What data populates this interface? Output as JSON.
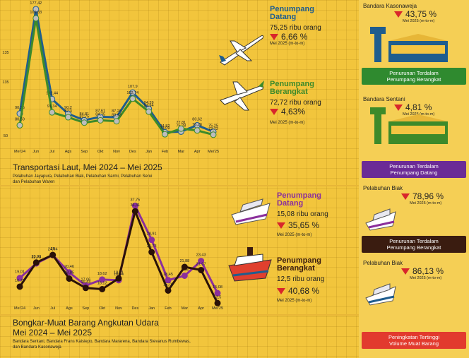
{
  "months": [
    "Mei'24",
    "Jun",
    "Jul",
    "Ags",
    "Sep",
    "Okt",
    "Nov",
    "Des",
    "Jan",
    "Feb",
    "Mar",
    "Apr",
    "Mei'25"
  ],
  "chart_data": [
    {
      "type": "line",
      "title": "",
      "series": [
        {
          "name": "Penumpang Datang",
          "color": "#1f5d8e",
          "values": [
            90.35,
            177.42,
            102.44,
            90.2,
            84.81,
            87.61,
            87.28,
            107.9,
            94.39,
            74.82,
            75.28,
            80.62,
            75.25
          ]
        },
        {
          "name": "Penumpang Berangkat",
          "color": "#3d8a2a",
          "values": [
            80.59,
            169.83,
            91.34,
            87.3,
            82.75,
            84.75,
            83.93,
            102.74,
            91.94,
            73.09,
            77.81,
            76.26,
            72.72
          ]
        }
      ],
      "y_ticks": [
        "135",
        "135",
        "50"
      ]
    },
    {
      "type": "line",
      "title": "",
      "series": [
        {
          "name": "Penumpang Datang",
          "color": "#8b2f9c",
          "values": [
            19.01,
            22.79,
            24.94,
            20.46,
            17.06,
            18.62,
            18.44,
            37.75,
            28.91,
            18.45,
            19.6,
            23.43,
            15.08
          ]
        },
        {
          "name": "Penumpang Berangkat",
          "color": "#2a1208",
          "values": [
            16.77,
            23.03,
            25,
            18.85,
            16.43,
            16.12,
            18.91,
            36.31,
            25.73,
            15.76,
            21.88,
            21.07,
            12.5
          ]
        }
      ],
      "y_ticks": [
        "50"
      ]
    }
  ],
  "air": {
    "datang_title": "Penumpang\nDatang",
    "datang_value": "75,25  ribu orang",
    "datang_pct": "6,66 %",
    "datang_note": "Mei 2025 (m-to-m)",
    "berangkat_title": "Penumpang\nBerangkat",
    "berangkat_value": "72,72 ribu orang",
    "berangkat_pct": "4,63%",
    "berangkat_note": "Mei 2025 (m-to-m)"
  },
  "sea": {
    "section_title": "Transportasi Laut, Mei 2024 – Mei 2025",
    "section_sub": "Pelabuhan Jayapura,  Pelabuhan Biak,  Pelabuhan Sarmi, Pelabuhan Serui\ndan Pelabuhan Waren",
    "datang_title": "Penumpang\nDatang",
    "datang_value": "15,08 ribu orang",
    "datang_pct": "35,65 %",
    "datang_note": "Mei 2025 (m-to-m)",
    "berangkat_title": "Penumpang\nBerangkat",
    "berangkat_value": "12,5 ribu orang",
    "berangkat_pct": "40,68 %",
    "berangkat_note": "Mei 2025 (m-to-m)"
  },
  "cargo": {
    "title_line1": "Bongkar-Muat Barang Angkutan Udara",
    "title_line2": "Mei 2024 – Mei 2025",
    "sub": "Bandara Sentani, Bandara  Frans Kaisiepo, Bandara Mararena, Bandara Stevanus Rumbewas,\ndan Bandara Kasonaweja"
  },
  "right": {
    "item1_label": "Bandara  Kasonaweja",
    "item1_pct": "43,75 %",
    "item1_note": "Mei 2025 (m-to-m)",
    "banner1": "Penurunan Terdalam\nPenumpang Berangkat",
    "item2_label": "Bandara Sentani",
    "item2_pct": "4,81 %",
    "item2_note": "Mei 2025 (m-to-m)",
    "banner2": "Penurunan Terdalam\nPenumpang Datang",
    "item3_label": "Pelabuhan Biak",
    "item3_pct": "78,96 %",
    "item3_note": "Mei 2025 (m-to-m)",
    "banner3": "Penurunan Terdalam\nPenumpang Berangkat",
    "item4_label": "Pelabuhan Biak",
    "item4_pct": "86,13 %",
    "item4_note": "Mei 2025 (m-to-m)",
    "banner4": "Peningkatan Tertinggi\nVolume Muat Barang"
  },
  "colors": {
    "red": "#d8262b",
    "green_banner": "#2f8a2f",
    "purple_banner": "#6b2b96",
    "brown_banner": "#3a1c10",
    "red_banner": "#e23a2e"
  }
}
